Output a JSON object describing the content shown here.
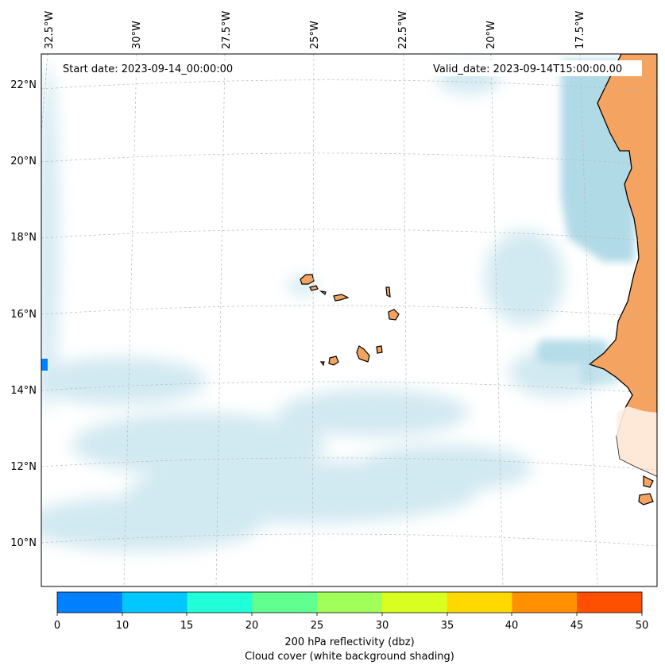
{
  "map": {
    "start_label": "Start date: 2023-09-14_00:00:00",
    "valid_label": "Valid_date: 2023-09-14T15:00:00.00",
    "lon_labels": [
      "32.5°W",
      "30°W",
      "27.5°W",
      "25°W",
      "22.5°W",
      "20°W",
      "17.5°W"
    ],
    "lat_labels": [
      "22°N",
      "20°N",
      "18°N",
      "16°N",
      "14°N",
      "12°N",
      "10°N"
    ]
  },
  "colorbar": {
    "ticks": [
      "0",
      "10",
      "15",
      "20",
      "25",
      "30",
      "35",
      "40",
      "45",
      "50"
    ],
    "colors": [
      "#0080ff",
      "#00c8ff",
      "#20ffd8",
      "#60ff90",
      "#a0ff58",
      "#d8ff20",
      "#ffd800",
      "#ff9000",
      "#ff5000"
    ],
    "label_line1": "200 hPa reflectivity (dbz)",
    "label_line2": "Cloud cover (white background shading)"
  },
  "colors": {
    "land": "#f4a460",
    "cloud": "#add8e6",
    "coast": "#000000"
  }
}
